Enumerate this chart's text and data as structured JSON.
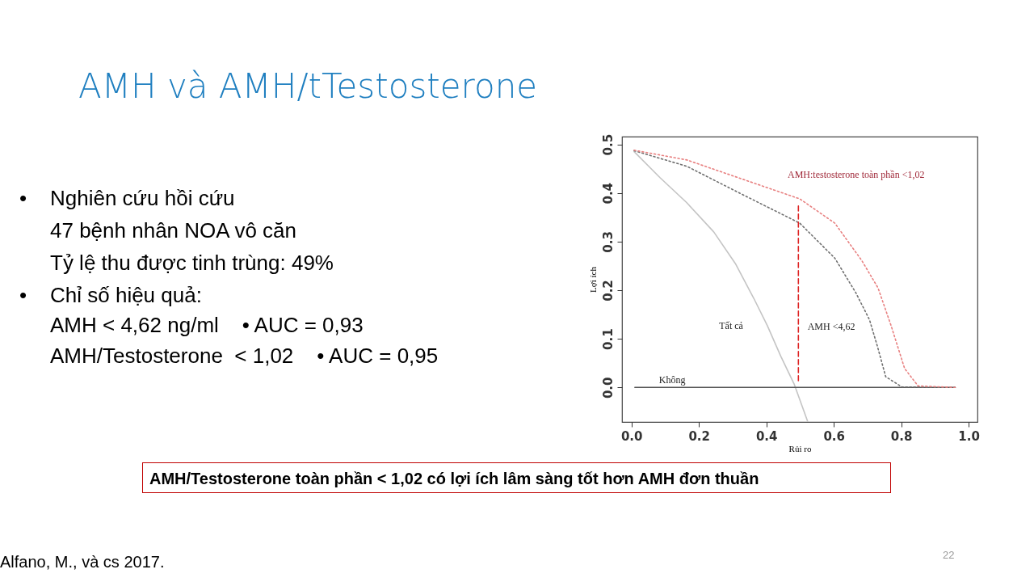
{
  "chart_data": {
    "type": "line",
    "title": "AMH và AMH/tTestosterone",
    "xlabel": "Rủi ro",
    "ylabel": "Lợi ích",
    "xlim": [
      -0.028,
      1.026
    ],
    "ylim": [
      -0.071,
      0.516
    ],
    "xticks": [
      {
        "value": 0,
        "label": "0.0"
      },
      {
        "value": 0.2,
        "label": "0.2"
      },
      {
        "value": 0.4,
        "label": "0.4"
      },
      {
        "value": 0.6,
        "label": "0.6"
      },
      {
        "value": 0.8,
        "label": "0.8"
      },
      {
        "value": 1,
        "label": "1.0"
      }
    ],
    "yticks": [
      {
        "value": 0,
        "label": "0.0"
      },
      {
        "value": 0.1,
        "label": "0.1"
      },
      {
        "value": 0.2,
        "label": "0.2"
      },
      {
        "value": 0.3,
        "label": "0.3"
      },
      {
        "value": 0.4,
        "label": "0.4"
      },
      {
        "value": 0.5,
        "label": "0.5"
      }
    ],
    "grid": false,
    "marker": "none",
    "series": [
      {
        "name": "Tất cả",
        "color": "#c4c4c4",
        "line_style": "solid",
        "x": [
          0.008,
          0.084,
          0.164,
          0.244,
          0.308,
          0.363,
          0.403,
          0.443,
          0.483,
          0.523
        ],
        "values": [
          0.485,
          0.432,
          0.38,
          0.32,
          0.255,
          0.183,
          0.127,
          0.064,
          0.006,
          -0.071
        ]
      },
      {
        "name": "Không",
        "color": "#555555",
        "line_style": "solid",
        "x": [
          0.01,
          0.96
        ],
        "values": [
          0,
          0
        ]
      },
      {
        "name": "AMH <4,62",
        "color": "#707070",
        "line_style": "dotted",
        "x": [
          0.008,
          0.164,
          0.323,
          0.499,
          0.603,
          0.666,
          0.706,
          0.73,
          0.754,
          0.802,
          0.96
        ],
        "values": [
          0.487,
          0.455,
          0.399,
          0.338,
          0.266,
          0.194,
          0.139,
          0.083,
          0.022,
          0.001,
          0
        ]
      },
      {
        "name": "AMH:testosterone toàn phần <1,02",
        "color": "#e88080",
        "line_style": "dotted",
        "x": [
          0.008,
          0.164,
          0.323,
          0.499,
          0.603,
          0.683,
          0.731,
          0.77,
          0.81,
          0.85,
          0.96
        ],
        "values": [
          0.488,
          0.468,
          0.43,
          0.388,
          0.338,
          0.261,
          0.205,
          0.127,
          0.039,
          0.003,
          0
        ]
      },
      {
        "color": "#dd2222",
        "line_style": "dashed",
        "x": [
          0.495,
          0.495
        ],
        "values": [
          0.014,
          0.374
        ]
      }
    ],
    "annotations": [
      "•\tNghiên cứu hồi cứu",
      "47 bệnh nhân NOA vô căn",
      "Tỷ lệ thu được tinh trùng: 49%",
      "•\tChỉ số hiệu quả:",
      "AMH < 4,62 ng/ml    • AUC = 0,93",
      "AMH/Testosterone  < 1,02    • AUC = 0,95",
      "AMH/Testosterone toàn phần < 1,02 có lợi ích lâm sàng tốt hơn AMH đơn thuần",
      "Alfano, M., và cs 2017.",
      "22"
    ]
  }
}
